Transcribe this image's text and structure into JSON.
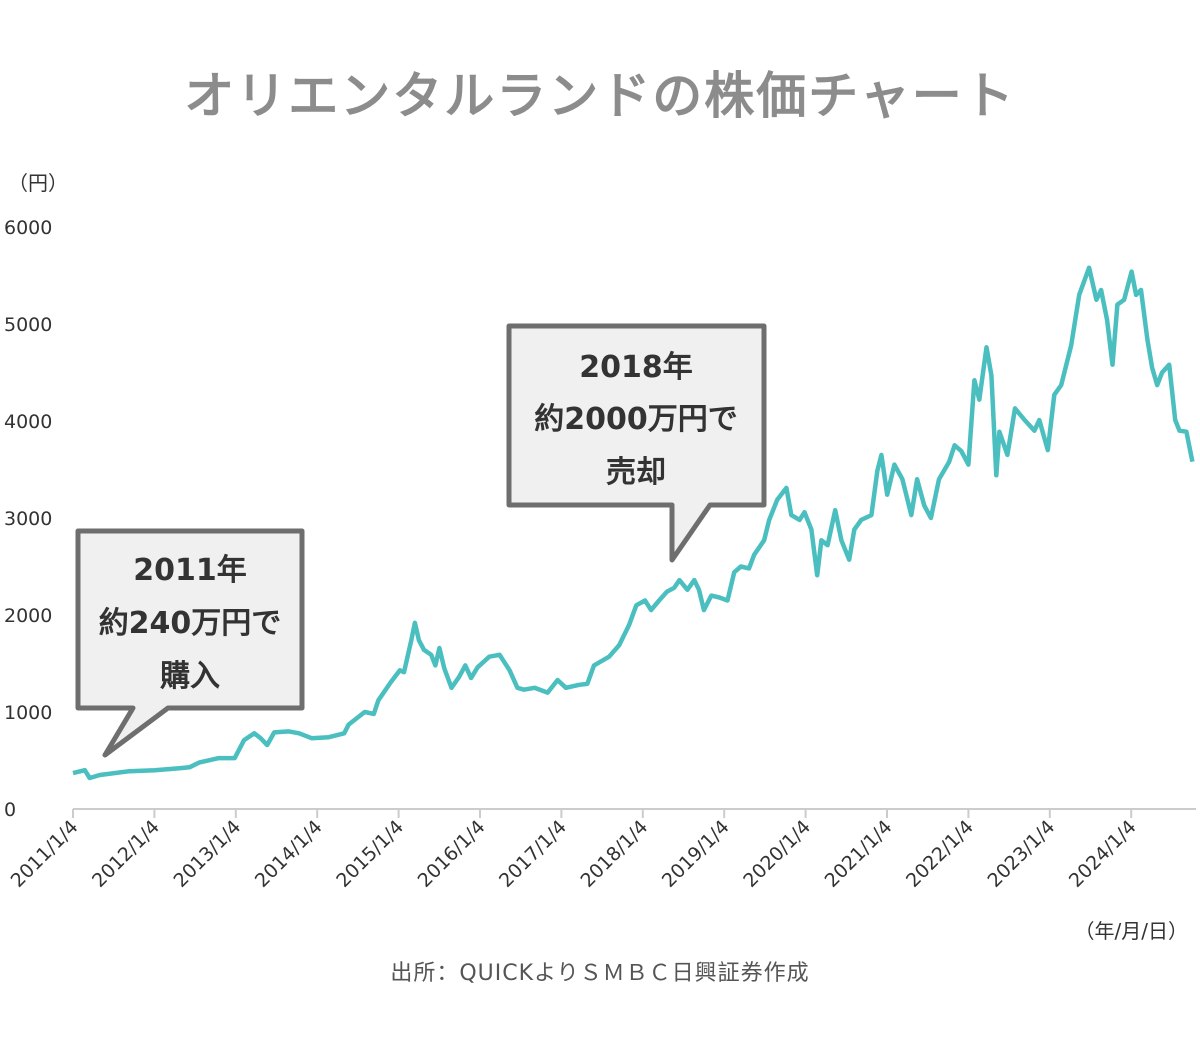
{
  "chart_data": {
    "type": "line",
    "title": "オリエンタルランドの株価チャート",
    "ylabel": "（円）",
    "xlabel": "（年/月/日）",
    "source": "出所：QUICKよりＳＭＢＣ日興証券作成",
    "ylim": [
      0,
      6000
    ],
    "yticks": [
      "0",
      "1000",
      "2000",
      "3000",
      "4000",
      "5000",
      "6000"
    ],
    "xticks": [
      "2011/1/4",
      "2012/1/4",
      "2013/1/4",
      "2014/1/4",
      "2015/1/4",
      "2016/1/4",
      "2017/1/4",
      "2018/1/4",
      "2019/1/4",
      "2020/1/4",
      "2021/1/4",
      "2022/1/4",
      "2023/1/4",
      "2024/1/4"
    ],
    "xlim": [
      "2011-01-04",
      "2024-10-10"
    ],
    "grid": false,
    "line_color": "#4bbfbf",
    "annotations": [
      {
        "lines": [
          "2011年",
          "約240万円で",
          "購入"
        ],
        "date": "2011-05-01"
      },
      {
        "lines": [
          "2018年",
          "約2000万円で",
          "売却"
        ],
        "date": "2018-05-01"
      }
    ],
    "series": [
      {
        "points": [
          [
            "2011-01-04",
            370
          ],
          [
            "2011-02-26",
            400
          ],
          [
            "2011-03-20",
            320
          ],
          [
            "2011-05-04",
            350
          ],
          [
            "2011-09-15",
            390
          ],
          [
            "2012-01-06",
            400
          ],
          [
            "2012-04-25",
            420
          ],
          [
            "2012-06-10",
            430
          ],
          [
            "2012-07-25",
            480
          ],
          [
            "2012-10-20",
            525
          ],
          [
            "2012-12-30",
            525
          ],
          [
            "2013-02-10",
            710
          ],
          [
            "2013-03-28",
            780
          ],
          [
            "2013-04-25",
            730
          ],
          [
            "2013-05-25",
            660
          ],
          [
            "2013-06-25",
            790
          ],
          [
            "2013-08-30",
            800
          ],
          [
            "2013-10-15",
            780
          ],
          [
            "2013-12-10",
            730
          ],
          [
            "2014-02-25",
            740
          ],
          [
            "2014-05-05",
            780
          ],
          [
            "2014-05-25",
            870
          ],
          [
            "2014-08-05",
            1000
          ],
          [
            "2014-09-15",
            980
          ],
          [
            "2014-10-05",
            1120
          ],
          [
            "2014-11-28",
            1300
          ],
          [
            "2015-01-10",
            1430
          ],
          [
            "2015-01-28",
            1410
          ],
          [
            "2015-03-02",
            1740
          ],
          [
            "2015-03-18",
            1920
          ],
          [
            "2015-04-05",
            1740
          ],
          [
            "2015-04-28",
            1640
          ],
          [
            "2015-05-30",
            1590
          ],
          [
            "2015-06-18",
            1480
          ],
          [
            "2015-07-06",
            1660
          ],
          [
            "2015-07-28",
            1450
          ],
          [
            "2015-08-29",
            1250
          ],
          [
            "2015-10-02",
            1360
          ],
          [
            "2015-10-30",
            1480
          ],
          [
            "2015-11-25",
            1350
          ],
          [
            "2015-12-24",
            1460
          ],
          [
            "2016-02-15",
            1570
          ],
          [
            "2016-04-01",
            1590
          ],
          [
            "2016-05-16",
            1430
          ],
          [
            "2016-06-20",
            1250
          ],
          [
            "2016-07-20",
            1230
          ],
          [
            "2016-09-05",
            1250
          ],
          [
            "2016-11-03",
            1200
          ],
          [
            "2016-12-18",
            1330
          ],
          [
            "2017-01-24",
            1250
          ],
          [
            "2017-03-25",
            1280
          ],
          [
            "2017-04-30",
            1290
          ],
          [
            "2017-05-30",
            1480
          ],
          [
            "2017-08-06",
            1570
          ],
          [
            "2017-09-20",
            1690
          ],
          [
            "2017-11-04",
            1900
          ],
          [
            "2017-12-06",
            2100
          ],
          [
            "2018-01-14",
            2150
          ],
          [
            "2018-02-10",
            2050
          ],
          [
            "2018-03-18",
            2150
          ],
          [
            "2018-04-22",
            2240
          ],
          [
            "2018-05-25",
            2280
          ],
          [
            "2018-06-17",
            2360
          ],
          [
            "2018-07-23",
            2260
          ],
          [
            "2018-08-23",
            2360
          ],
          [
            "2018-09-13",
            2260
          ],
          [
            "2018-10-05",
            2050
          ],
          [
            "2018-11-07",
            2200
          ],
          [
            "2018-12-14",
            2180
          ],
          [
            "2019-01-19",
            2150
          ],
          [
            "2019-02-18",
            2440
          ],
          [
            "2019-03-20",
            2500
          ],
          [
            "2019-04-25",
            2480
          ],
          [
            "2019-05-18",
            2620
          ],
          [
            "2019-07-02",
            2770
          ],
          [
            "2019-07-25",
            2980
          ],
          [
            "2019-08-30",
            3190
          ],
          [
            "2019-10-10",
            3310
          ],
          [
            "2019-11-01",
            3030
          ],
          [
            "2019-12-08",
            2980
          ],
          [
            "2019-12-30",
            3060
          ],
          [
            "2020-01-30",
            2880
          ],
          [
            "2020-02-25",
            2410
          ],
          [
            "2020-03-15",
            2770
          ],
          [
            "2020-04-12",
            2720
          ],
          [
            "2020-05-16",
            3080
          ],
          [
            "2020-06-13",
            2770
          ],
          [
            "2020-07-18",
            2570
          ],
          [
            "2020-08-10",
            2880
          ],
          [
            "2020-09-10",
            2980
          ],
          [
            "2020-10-26",
            3030
          ],
          [
            "2020-11-22",
            3490
          ],
          [
            "2020-12-10",
            3650
          ],
          [
            "2021-01-05",
            3240
          ],
          [
            "2021-02-06",
            3550
          ],
          [
            "2021-03-14",
            3400
          ],
          [
            "2021-04-23",
            3030
          ],
          [
            "2021-05-19",
            3400
          ],
          [
            "2021-06-20",
            3130
          ],
          [
            "2021-07-20",
            3000
          ],
          [
            "2021-08-25",
            3400
          ],
          [
            "2021-10-10",
            3580
          ],
          [
            "2021-11-03",
            3750
          ],
          [
            "2021-12-03",
            3690
          ],
          [
            "2022-01-04",
            3550
          ],
          [
            "2022-01-31",
            4420
          ],
          [
            "2022-02-22",
            4220
          ],
          [
            "2022-03-26",
            4760
          ],
          [
            "2022-04-17",
            4470
          ],
          [
            "2022-05-09",
            3440
          ],
          [
            "2022-05-23",
            3890
          ],
          [
            "2022-06-28",
            3650
          ],
          [
            "2022-08-01",
            4130
          ],
          [
            "2022-09-13",
            4010
          ],
          [
            "2022-10-27",
            3900
          ],
          [
            "2022-11-18",
            4010
          ],
          [
            "2022-12-26",
            3700
          ],
          [
            "2023-01-24",
            4270
          ],
          [
            "2023-02-24",
            4370
          ],
          [
            "2023-04-10",
            4780
          ],
          [
            "2023-05-16",
            5300
          ],
          [
            "2023-06-29",
            5580
          ],
          [
            "2023-08-01",
            5250
          ],
          [
            "2023-08-22",
            5350
          ],
          [
            "2023-09-18",
            5040
          ],
          [
            "2023-10-12",
            4580
          ],
          [
            "2023-11-03",
            5200
          ],
          [
            "2023-12-03",
            5250
          ],
          [
            "2024-01-06",
            5540
          ],
          [
            "2024-01-26",
            5300
          ],
          [
            "2024-02-17",
            5350
          ],
          [
            "2024-03-17",
            4840
          ],
          [
            "2024-04-07",
            4550
          ],
          [
            "2024-04-30",
            4370
          ],
          [
            "2024-05-22",
            4500
          ],
          [
            "2024-06-23",
            4580
          ],
          [
            "2024-07-20",
            4010
          ],
          [
            "2024-08-08",
            3900
          ],
          [
            "2024-09-08",
            3890
          ],
          [
            "2024-10-05",
            3580
          ]
        ]
      }
    ]
  }
}
